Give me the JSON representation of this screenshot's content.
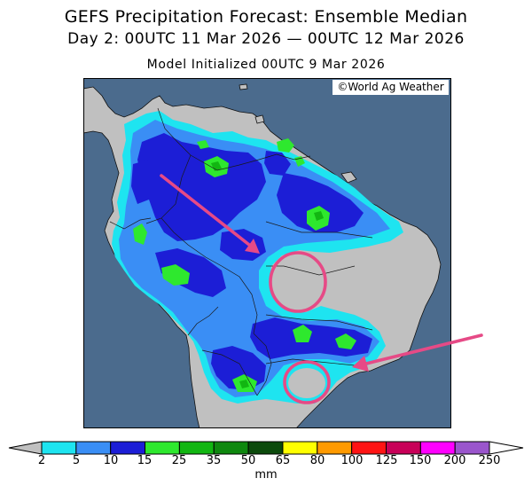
{
  "title": {
    "main": "GEFS Precipitation Forecast: Ensemble Median",
    "valid": "Day 2: 00UTC 11 Mar 2026 — 00UTC 12 Mar 2026",
    "init": "Model Initialized 00UTC 9 Mar 2026"
  },
  "copyright": "©World Ag Weather",
  "map": {
    "ocean_color": "#4b6b8d",
    "land_color": "#c0c0c0",
    "border_color": "#1a1a1a",
    "annotation_color": "#e64a86"
  },
  "colorbar": {
    "unit": "mm",
    "ticks": [
      "2",
      "5",
      "10",
      "15",
      "25",
      "35",
      "50",
      "65",
      "80",
      "100",
      "125",
      "150",
      "200",
      "250"
    ],
    "under_color": "#c0c0c0",
    "over_color": "#ffffff",
    "colors": [
      "#1ee4f0",
      "#3a8ef5",
      "#1c1ed6",
      "#2ee82e",
      "#12b612",
      "#0f880f",
      "#0b4a0b",
      "#ffff00",
      "#ff9a00",
      "#ff1414",
      "#c80058",
      "#ff00ff",
      "#9a55cc"
    ]
  }
}
